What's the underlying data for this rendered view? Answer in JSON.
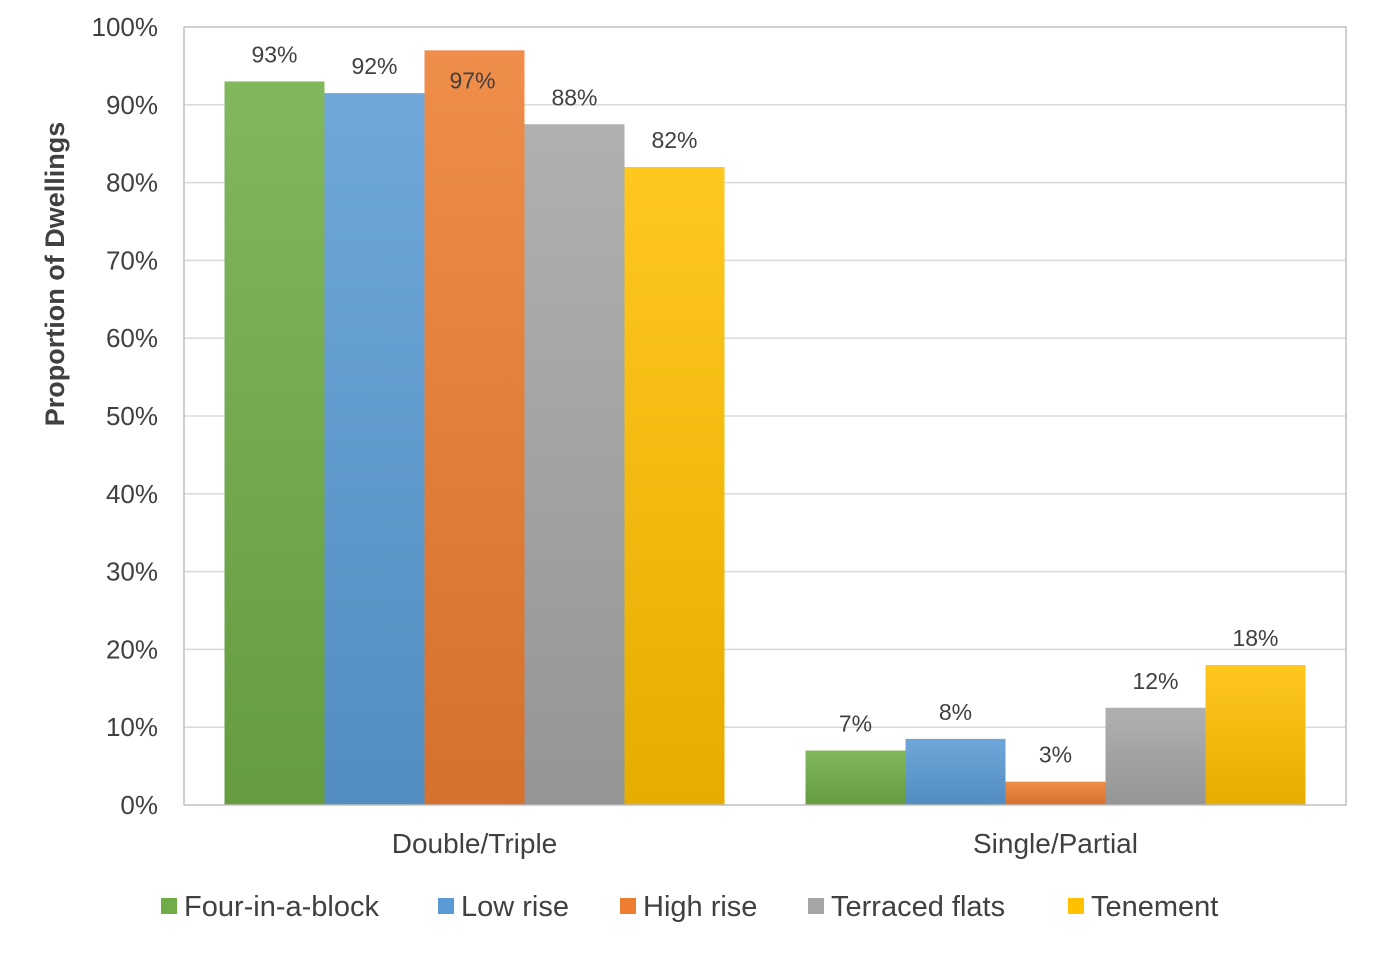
{
  "chart_data": {
    "type": "bar",
    "title": "",
    "xlabel": "",
    "ylabel": "Proportion of Dwellings",
    "ylim": [
      0,
      100
    ],
    "y_ticks": [
      "0%",
      "10%",
      "20%",
      "30%",
      "40%",
      "50%",
      "60%",
      "70%",
      "80%",
      "90%",
      "100%"
    ],
    "categories": [
      "Double/Triple",
      "Single/Partial"
    ],
    "series": [
      {
        "name": "Four-in-a-block",
        "color": "#70ad47",
        "values": [
          93,
          7
        ],
        "labels": [
          "93%",
          "7%"
        ]
      },
      {
        "name": "Low rise",
        "color": "#5b9bd5",
        "values": [
          91.5,
          8.5
        ],
        "labels": [
          "92%",
          "8%"
        ]
      },
      {
        "name": "High rise",
        "color": "#ed7d31",
        "values": [
          97,
          3
        ],
        "labels": [
          "97%",
          "3%"
        ]
      },
      {
        "name": "Terraced flats",
        "color": "#a5a5a5",
        "values": [
          87.5,
          12.5
        ],
        "labels": [
          "88%",
          "12%"
        ]
      },
      {
        "name": "Tenement",
        "color": "#ffc000",
        "values": [
          82,
          18
        ],
        "labels": [
          "82%",
          "18%"
        ]
      }
    ],
    "grid": true,
    "legend_position": "bottom"
  }
}
